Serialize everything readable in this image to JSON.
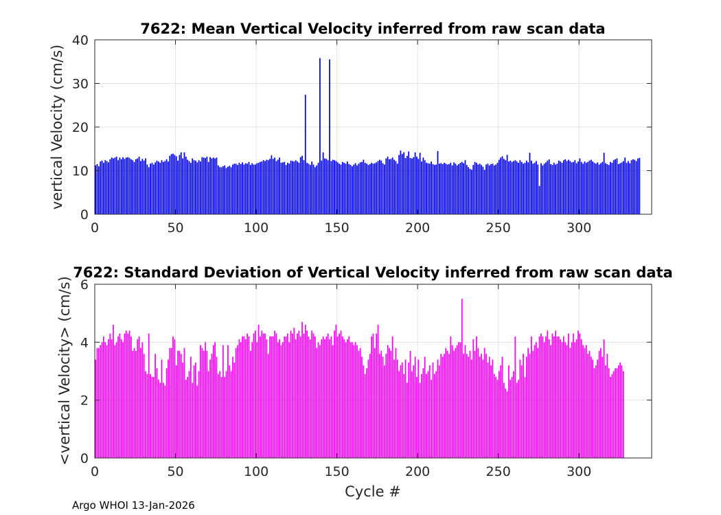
{
  "footer": "Argo WHOI 13-Jan-2026",
  "chart_data": [
    {
      "type": "bar",
      "title": "7622: Mean Vertical Velocity inferred from raw scan data",
      "xlabel": "",
      "ylabel": "vertical Velocity (cm/s)",
      "xlim": [
        0,
        345
      ],
      "ylim": [
        0,
        40
      ],
      "xticks": [
        0,
        50,
        100,
        150,
        200,
        250,
        300
      ],
      "yticks": [
        0,
        10,
        20,
        30,
        40
      ],
      "grid": true,
      "color": "#0000ff",
      "x_start": 0,
      "values": [
        11.2,
        11.5,
        11.0,
        12.1,
        12.3,
        11.8,
        12.4,
        12.2,
        11.9,
        12.6,
        13.0,
        12.8,
        13.0,
        13.2,
        12.4,
        13.0,
        12.6,
        13.1,
        12.7,
        13.0,
        13.1,
        12.9,
        12.6,
        12.4,
        12.0,
        12.6,
        12.8,
        13.2,
        12.2,
        12.7,
        12.3,
        12.8,
        11.4,
        10.8,
        11.6,
        11.8,
        11.4,
        11.9,
        12.3,
        12.1,
        11.8,
        12.4,
        12.0,
        12.2,
        12.6,
        12.1,
        13.4,
        13.8,
        13.9,
        13.6,
        13.3,
        12.3,
        13.6,
        14.2,
        12.8,
        14.2,
        13.2,
        12.5,
        12.2,
        11.8,
        12.8,
        12.4,
        12.3,
        11.9,
        12.4,
        12.1,
        13.1,
        13.0,
        12.9,
        13.2,
        12.0,
        13.1,
        12.8,
        13.0,
        12.8,
        13.0,
        11.2,
        10.8,
        10.8,
        11.0,
        11.2,
        10.6,
        10.9,
        11.1,
        10.8,
        11.4,
        11.6,
        11.6,
        11.3,
        11.8,
        11.5,
        11.9,
        11.4,
        11.7,
        11.6,
        12.0,
        11.3,
        11.7,
        11.4,
        11.4,
        11.7,
        11.8,
        12.0,
        12.1,
        12.4,
        12.2,
        12.5,
        12.4,
        12.7,
        13.5,
        12.7,
        13.0,
        12.2,
        12.5,
        13.0,
        11.8,
        11.9,
        12.0,
        11.3,
        11.8,
        11.6,
        12.3,
        12.2,
        12.1,
        12.4,
        12.1,
        11.8,
        13.1,
        13.4,
        12.4,
        27.4,
        11.8,
        11.6,
        11.3,
        12.1,
        11.4,
        10.8,
        11.2,
        11.8,
        35.8,
        12.3,
        14.2,
        12.8,
        12.7,
        12.4,
        35.5,
        12.2,
        12.5,
        12.4,
        12.2,
        11.9,
        11.6,
        11.4,
        12.0,
        11.8,
        11.6,
        12.1,
        11.5,
        11.3,
        11.0,
        11.4,
        11.7,
        11.2,
        11.6,
        11.9,
        12.0,
        12.5,
        11.8,
        11.6,
        11.3,
        11.5,
        11.8,
        11.6,
        11.7,
        11.9,
        12.2,
        12.5,
        12.3,
        11.7,
        11.4,
        12.8,
        13.2,
        12.6,
        12.7,
        13.0,
        12.5,
        12.2,
        11.6,
        13.6,
        14.6,
        13.8,
        14.2,
        12.9,
        13.4,
        14.4,
        12.9,
        12.8,
        13.1,
        14.2,
        13.2,
        12.7,
        14.1,
        12.1,
        13.0,
        12.4,
        11.8,
        11.7,
        11.6,
        12.1,
        11.5,
        11.3,
        11.4,
        14.5,
        11.6,
        11.7,
        11.5,
        11.8,
        11.6,
        11.4,
        11.5,
        11.8,
        11.2,
        11.9,
        11.6,
        11.2,
        11.5,
        11.8,
        12.0,
        11.7,
        12.4,
        11.3,
        10.8,
        10.4,
        10.2,
        11.3,
        12.0,
        11.8,
        11.4,
        11.6,
        11.3,
        10.9,
        10.2,
        11.4,
        11.6,
        11.2,
        11.5,
        11.6,
        11.2,
        11.4,
        11.8,
        12.5,
        13.0,
        13.3,
        12.7,
        12.4,
        13.6,
        12.1,
        12.3,
        12.0,
        12.2,
        12.4,
        12.1,
        11.8,
        12.4,
        12.0,
        11.6,
        11.8,
        12.3,
        11.9,
        14.1,
        12.3,
        11.6,
        11.8,
        12.2,
        11.4,
        6.5,
        11.7,
        11.2,
        11.6,
        11.9,
        12.3,
        12.6,
        11.5,
        11.3,
        11.8,
        11.4,
        11.6,
        12.3,
        12.1,
        11.8,
        12.4,
        12.6,
        12.2,
        12.5,
        12.2,
        11.9,
        12.0,
        12.4,
        11.7,
        12.1,
        12.8,
        12.0,
        11.6,
        12.1,
        11.8,
        12.0,
        12.3,
        12.5,
        12.1,
        11.8,
        11.6,
        11.9,
        11.4,
        11.7,
        12.0,
        14.1,
        11.7,
        11.5,
        11.3,
        12.0,
        11.8,
        12.4,
        12.6,
        12.8,
        11.5,
        11.7,
        11.9,
        12.2,
        13.0,
        11.8,
        12.2,
        11.7,
        12.4,
        12.6,
        12.5,
        12.2,
        12.8,
        12.9
      ]
    },
    {
      "type": "bar",
      "title": "7622: Standard Deviation of Vertical Velocity inferred from raw scan data",
      "xlabel": "Cycle #",
      "ylabel": "<vertical Velocity> (cm/s)",
      "xlim": [
        0,
        345
      ],
      "ylim": [
        0,
        6
      ],
      "xticks": [
        0,
        50,
        100,
        150,
        200,
        250,
        300
      ],
      "yticks": [
        0,
        2,
        4,
        6
      ],
      "grid": true,
      "color": "#ff00ff",
      "x_start": 0,
      "values": [
        3.4,
        3.8,
        3.8,
        3.9,
        4.0,
        4.2,
        4.0,
        3.9,
        4.1,
        4.3,
        4.1,
        4.6,
        3.9,
        4.0,
        4.2,
        4.3,
        4.1,
        4.0,
        4.3,
        4.4,
        4.3,
        4.4,
        4.2,
        3.7,
        3.8,
        3.7,
        4.1,
        4.2,
        3.8,
        4.0,
        3.6,
        3.0,
        2.9,
        4.3,
        2.9,
        2.8,
        2.8,
        3.6,
        3.1,
        2.7,
        2.6,
        3.4,
        2.6,
        2.5,
        3.1,
        3.4,
        3.8,
        3.8,
        4.2,
        4.1,
        3.2,
        3.7,
        3.7,
        3.6,
        3.3,
        3.8,
        2.7,
        2.8,
        3.0,
        3.5,
        2.6,
        3.2,
        3.3,
        2.5,
        3.0,
        3.9,
        3.8,
        3.7,
        4.0,
        3.7,
        3.0,
        3.4,
        3.6,
        3.9,
        4.0,
        3.5,
        2.9,
        3.0,
        2.8,
        3.9,
        2.8,
        3.0,
        3.9,
        3.2,
        3.0,
        3.5,
        3.3,
        3.8,
        3.9,
        4.1,
        4.0,
        4.2,
        4.2,
        4.1,
        4.3,
        4.2,
        3.7,
        4.0,
        4.3,
        4.4,
        4.0,
        4.6,
        4.2,
        4.4,
        4.3,
        4.3,
        4.1,
        3.6,
        4.2,
        4.2,
        4.2,
        4.4,
        4.3,
        4.0,
        4.1,
        3.9,
        4.0,
        4.2,
        4.2,
        4.3,
        4.0,
        4.4,
        4.3,
        4.5,
        4.1,
        4.3,
        4.4,
        4.2,
        4.7,
        4.3,
        4.6,
        4.4,
        4.2,
        4.1,
        4.4,
        4.3,
        4.2,
        3.8,
        4.0,
        3.9,
        4.1,
        4.2,
        4.1,
        4.2,
        4.3,
        4.1,
        4.2,
        3.9,
        4.4,
        4.6,
        4.2,
        4.3,
        4.4,
        4.2,
        4.1,
        4.0,
        4.1,
        4.2,
        4.0,
        4.0,
        3.9,
        4.0,
        3.9,
        3.7,
        3.8,
        3.5,
        3.2,
        2.9,
        3.1,
        3.4,
        3.6,
        4.2,
        4.3,
        3.8,
        4.3,
        4.6,
        3.6,
        3.7,
        3.5,
        3.2,
        3.6,
        3.9,
        3.8,
        3.7,
        4.2,
        3.4,
        3.8,
        3.4,
        3.0,
        3.2,
        3.3,
        2.9,
        3.4,
        2.6,
        3.3,
        3.7,
        3.0,
        3.2,
        3.5,
        2.8,
        3.4,
        2.6,
        2.9,
        3.1,
        3.5,
        2.9,
        3.0,
        3.2,
        2.7,
        3.3,
        2.9,
        3.0,
        3.4,
        3.2,
        3.6,
        3.5,
        3.6,
        3.8,
        3.7,
        3.6,
        4.2,
        3.9,
        3.7,
        3.8,
        3.9,
        4.0,
        4.0,
        5.5,
        3.6,
        3.9,
        3.6,
        3.5,
        3.7,
        3.4,
        4.1,
        3.7,
        4.2,
        3.8,
        3.5,
        3.6,
        3.4,
        3.8,
        3.6,
        3.3,
        3.5,
        3.2,
        3.4,
        2.9,
        2.8,
        2.7,
        3.0,
        3.2,
        3.5,
        2.6,
        2.4,
        2.3,
        3.2,
        2.7,
        2.8,
        3.0,
        4.2,
        2.6,
        2.7,
        3.4,
        3.2,
        3.6,
        2.8,
        3.5,
        3.8,
        3.6,
        4.2,
        3.7,
        3.9,
        4.0,
        3.8,
        4.2,
        4.3,
        4.2,
        4.0,
        4.2,
        4.4,
        4.1,
        3.9,
        4.3,
        4.2,
        4.4,
        4.2,
        4.2,
        4.1,
        4.0,
        4.2,
        4.0,
        3.9,
        4.3,
        3.8,
        4.0,
        4.3,
        4.0,
        4.1,
        4.4,
        4.3,
        4.1,
        3.9,
        3.8,
        3.9,
        3.6,
        3.7,
        3.5,
        3.4,
        3.1,
        3.2,
        3.4,
        3.7,
        3.8,
        3.5,
        4.1,
        3.2,
        3.6,
        3.1,
        2.8,
        2.9,
        3.0,
        3.1,
        3.1,
        3.2,
        3.3,
        3.2,
        3.0
      ]
    }
  ]
}
